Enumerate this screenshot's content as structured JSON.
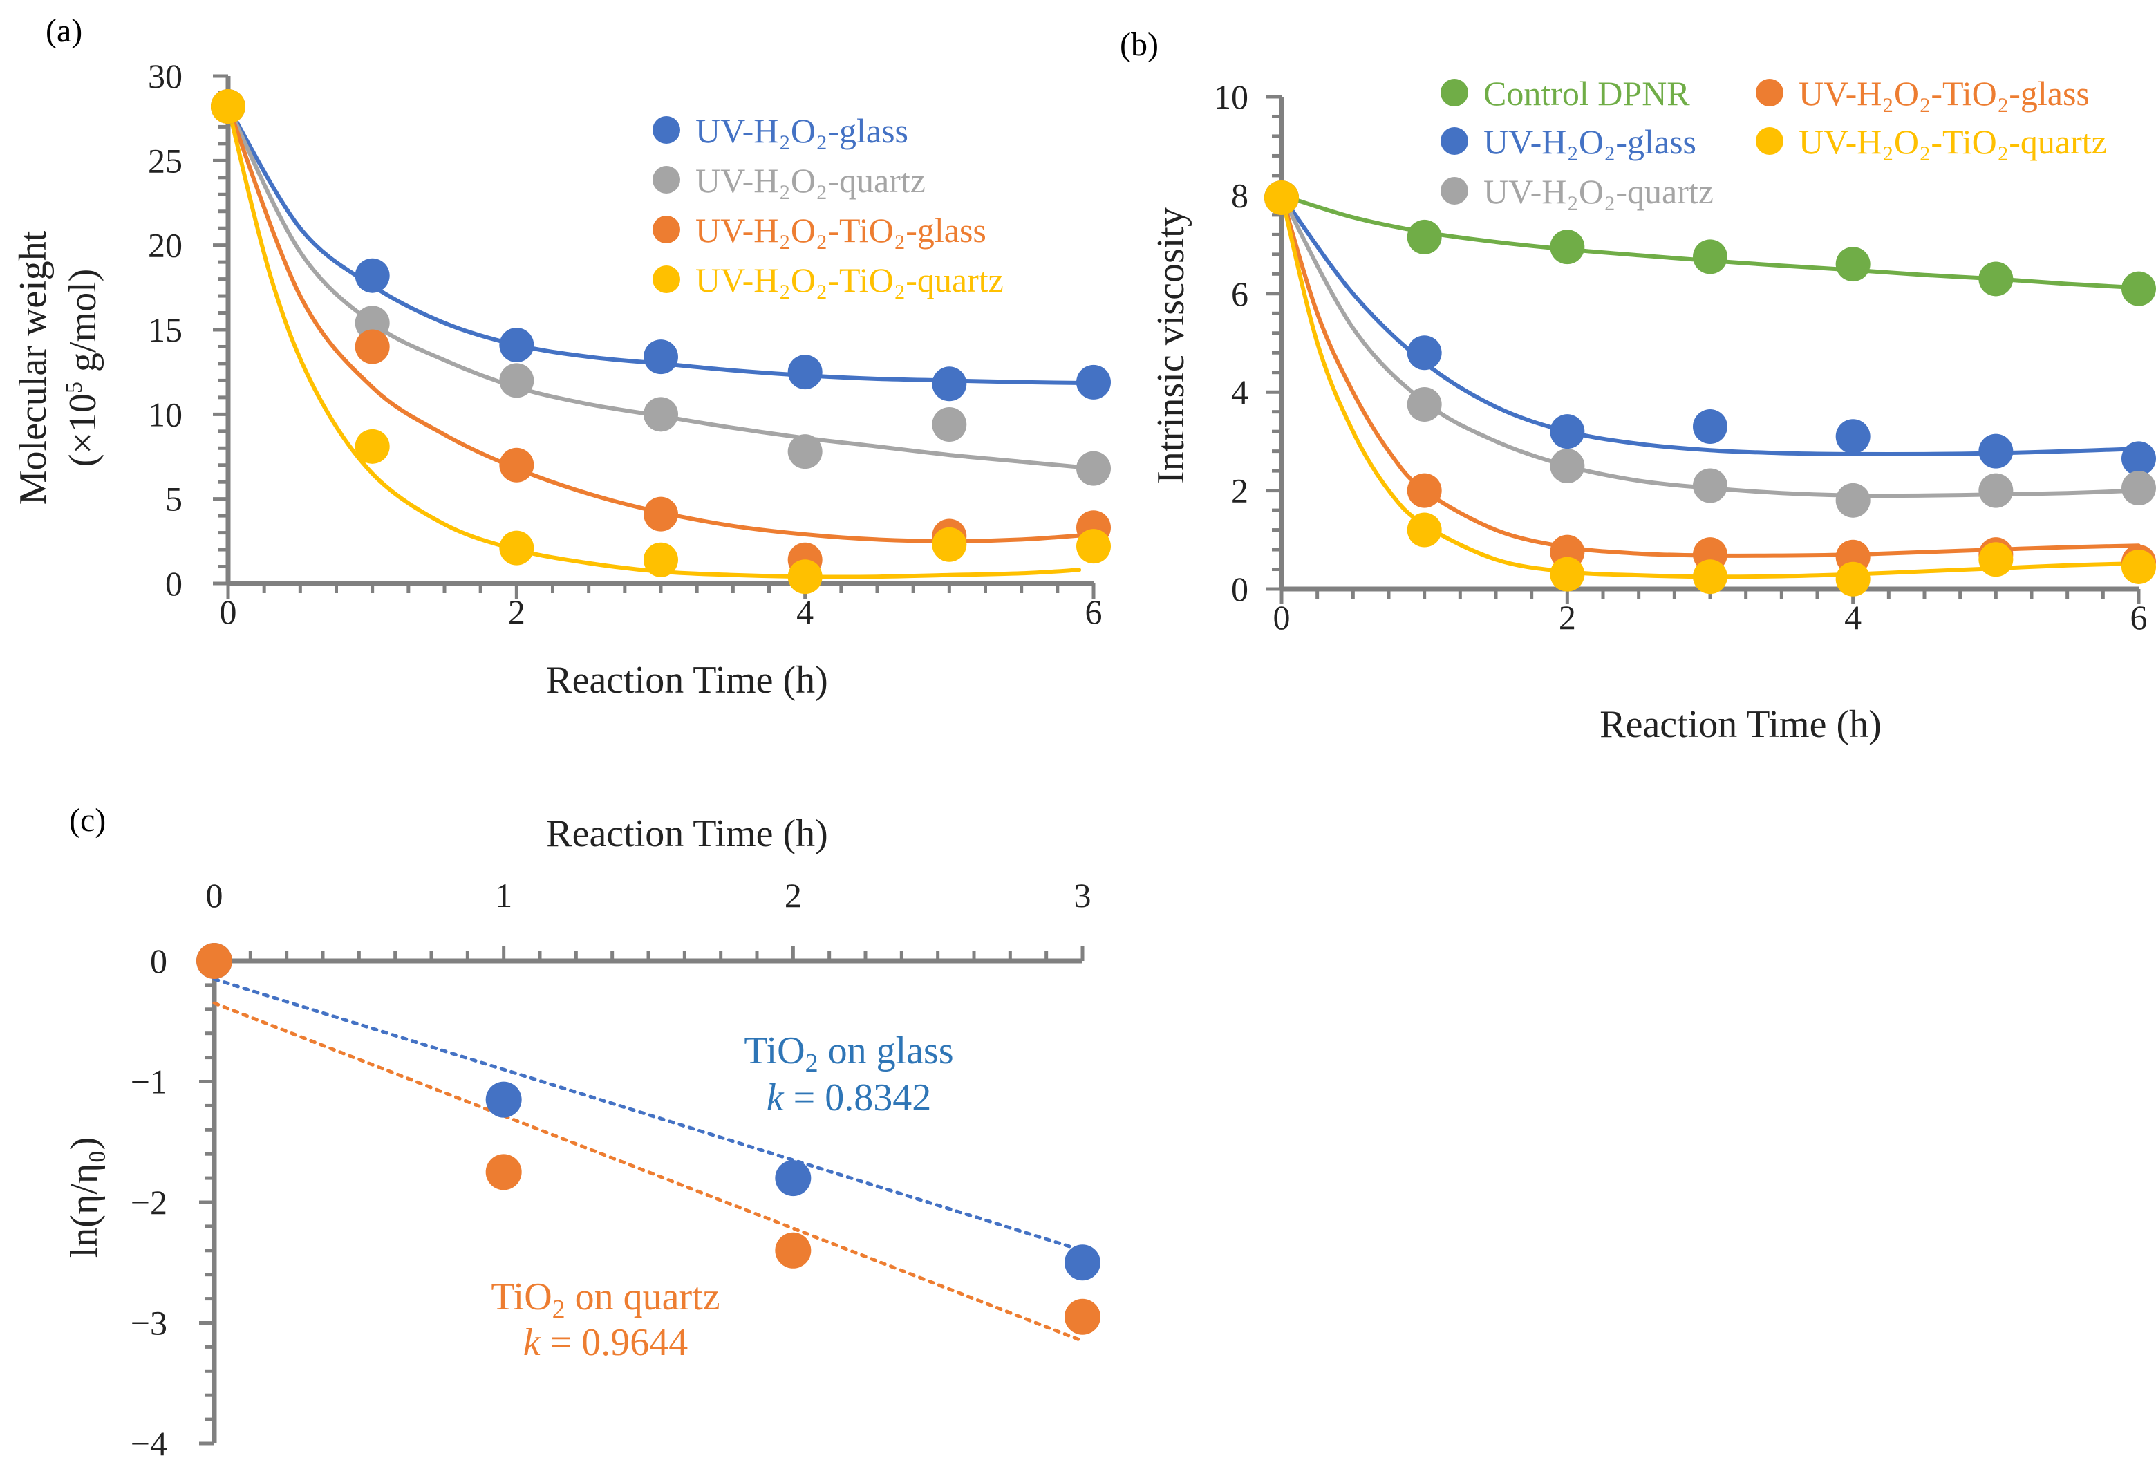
{
  "panels": {
    "a": "(a)",
    "b": "(b)",
    "c": "(c)"
  },
  "colors": {
    "control": "#70AD47",
    "glass": "#4472C4",
    "quartz": "#A5A5A5",
    "tio2_glass": "#ED7D31",
    "tio2_quartz": "#FFC000",
    "axis": "#808080",
    "c_glass_text": "#2E75B6",
    "c_quartz_text": "#ED7D31"
  },
  "legend_names": {
    "control": "Control DPNR",
    "glass": "UV-H₂O₂-glass",
    "quartz": "UV-H₂O₂-quartz",
    "tio2_glass": "UV-H₂O₂-TiO₂-glass",
    "tio2_quartz": "UV-H₂O₂-TiO₂-quartz"
  },
  "chart_data": [
    {
      "id": "a",
      "type": "scatter",
      "title": "",
      "xlabel": "Reaction Time  (h)",
      "ylabel_line1": "Molecular weight",
      "ylabel_line2_prefix": "(×10",
      "ylabel_line2_sup": "5",
      "ylabel_line2_suffix": " g/mol)",
      "xlim": [
        0,
        6
      ],
      "ylim": [
        0,
        30
      ],
      "xticks": [
        0,
        2,
        4,
        6
      ],
      "xtick_labels": [
        "0",
        "2",
        "4",
        "6"
      ],
      "yticks": [
        0,
        5,
        10,
        15,
        20,
        25,
        30
      ],
      "ytick_labels": [
        "0",
        "5",
        "10",
        "15",
        "20",
        "25",
        "30"
      ],
      "legend_position": "top-right",
      "series": [
        {
          "key": "glass",
          "name": "UV-H₂O₂-glass",
          "x": [
            0,
            1,
            2,
            3,
            4,
            5,
            6
          ],
          "y": [
            28.2,
            18.2,
            14.1,
            13.4,
            12.5,
            11.8,
            11.9
          ]
        },
        {
          "key": "quartz",
          "name": "UV-H₂O₂-quartz",
          "x": [
            0,
            1,
            2,
            3,
            4,
            5,
            6
          ],
          "y": [
            28.2,
            15.4,
            12.0,
            10.0,
            7.8,
            9.4,
            6.8
          ]
        },
        {
          "key": "tio2_glass",
          "name": "UV-H₂O₂-TiO₂-glass",
          "x": [
            0,
            1,
            2,
            3,
            4,
            5,
            6
          ],
          "y": [
            28.2,
            14.0,
            7.0,
            4.1,
            1.4,
            2.8,
            3.3
          ]
        },
        {
          "key": "tio2_quartz",
          "name": "UV-H₂O₂-TiO₂-quartz",
          "x": [
            0,
            1,
            2,
            3,
            4,
            5,
            6
          ],
          "y": [
            28.2,
            8.1,
            2.1,
            1.4,
            0.4,
            2.3,
            2.2
          ]
        }
      ],
      "fits": [
        {
          "key": "glass",
          "x": [
            0,
            0.5,
            1,
            1.5,
            2,
            2.5,
            3,
            3.5,
            4,
            4.5,
            5,
            5.5,
            6
          ],
          "y": [
            28.2,
            21.0,
            17.6,
            15.4,
            14.1,
            13.4,
            13.0,
            12.6,
            12.3,
            12.1,
            12.0,
            11.9,
            11.85
          ]
        },
        {
          "key": "quartz",
          "x": [
            0,
            0.5,
            1,
            1.5,
            2,
            2.5,
            3,
            3.5,
            4,
            4.5,
            5,
            5.5,
            6
          ],
          "y": [
            28.2,
            19.6,
            15.4,
            13.2,
            11.6,
            10.6,
            9.9,
            9.2,
            8.6,
            8.1,
            7.6,
            7.2,
            6.8
          ]
        },
        {
          "key": "tio2_glass",
          "x": [
            0,
            0.5,
            1,
            1.5,
            2,
            2.5,
            3,
            3.5,
            4,
            4.5,
            5,
            5.5,
            6
          ],
          "y": [
            28.2,
            17.0,
            11.6,
            8.8,
            6.8,
            5.3,
            4.2,
            3.4,
            2.9,
            2.6,
            2.5,
            2.6,
            2.9
          ]
        },
        {
          "key": "tio2_quartz",
          "x": [
            0,
            0.3,
            0.6,
            1,
            1.5,
            2,
            2.5,
            3,
            3.5,
            4,
            4.5,
            5,
            5.5,
            5.9
          ],
          "y": [
            28.2,
            18.0,
            11.5,
            6.5,
            3.5,
            2.0,
            1.2,
            0.7,
            0.5,
            0.4,
            0.4,
            0.5,
            0.6,
            0.8
          ]
        }
      ]
    },
    {
      "id": "b",
      "type": "scatter",
      "title": "",
      "xlabel": "Reaction Time  (h)",
      "ylabel": "Intrinsic viscosity",
      "xlim": [
        0,
        6
      ],
      "ylim": [
        0,
        10
      ],
      "xticks": [
        0,
        2,
        4,
        6
      ],
      "xtick_labels": [
        "0",
        "2",
        "4",
        "6"
      ],
      "yticks": [
        0,
        2,
        4,
        6,
        8,
        10
      ],
      "ytick_labels": [
        "0",
        "2",
        "4",
        "6",
        "8",
        "10"
      ],
      "legend_position": "top",
      "series": [
        {
          "key": "control",
          "name": "Control DPNR",
          "x": [
            0,
            1,
            2,
            3,
            4,
            5,
            6
          ],
          "y": [
            7.95,
            7.15,
            6.95,
            6.75,
            6.6,
            6.3,
            6.1
          ]
        },
        {
          "key": "glass",
          "name": "UV-H₂O₂-glass",
          "x": [
            0,
            1,
            2,
            3,
            4,
            5,
            6
          ],
          "y": [
            7.95,
            4.8,
            3.2,
            3.3,
            3.1,
            2.8,
            2.65
          ]
        },
        {
          "key": "quartz",
          "name": "UV-H₂O₂-quartz",
          "x": [
            0,
            1,
            2,
            3,
            4,
            5,
            6
          ],
          "y": [
            7.95,
            3.75,
            2.5,
            2.1,
            1.8,
            2.0,
            2.05
          ]
        },
        {
          "key": "tio2_glass",
          "name": "UV-H₂O₂-TiO₂-glass",
          "x": [
            0,
            1,
            2,
            3,
            4,
            5,
            6
          ],
          "y": [
            7.95,
            2.0,
            0.75,
            0.7,
            0.65,
            0.7,
            0.55
          ]
        },
        {
          "key": "tio2_quartz",
          "name": "UV-H₂O₂-TiO₂-quartz",
          "x": [
            0,
            1,
            2,
            3,
            4,
            5,
            6
          ],
          "y": [
            7.95,
            1.2,
            0.3,
            0.25,
            0.2,
            0.6,
            0.45
          ]
        }
      ],
      "fits": [
        {
          "key": "control",
          "x": [
            0,
            0.5,
            1,
            1.5,
            2,
            2.5,
            3,
            3.5,
            4,
            4.5,
            5,
            5.5,
            6
          ],
          "y": [
            8.0,
            7.55,
            7.25,
            7.05,
            6.9,
            6.78,
            6.67,
            6.57,
            6.48,
            6.38,
            6.3,
            6.2,
            6.12
          ]
        },
        {
          "key": "glass",
          "x": [
            0,
            0.5,
            1,
            1.5,
            2,
            2.5,
            3,
            3.5,
            4,
            4.5,
            5,
            5.5,
            6
          ],
          "y": [
            8.0,
            6.0,
            4.6,
            3.7,
            3.2,
            2.95,
            2.82,
            2.76,
            2.74,
            2.74,
            2.76,
            2.8,
            2.85
          ]
        },
        {
          "key": "quartz",
          "x": [
            0,
            0.5,
            1,
            1.5,
            2,
            2.5,
            3,
            3.5,
            4,
            4.5,
            5,
            5.5,
            6
          ],
          "y": [
            8.0,
            5.3,
            3.8,
            3.0,
            2.5,
            2.2,
            2.05,
            1.95,
            1.9,
            1.9,
            1.92,
            1.95,
            2.0
          ]
        },
        {
          "key": "tio2_glass",
          "x": [
            0,
            0.25,
            0.5,
            0.75,
            1,
            1.5,
            2,
            2.5,
            3,
            3.5,
            4,
            4.5,
            5,
            5.5,
            6
          ],
          "y": [
            8.0,
            5.6,
            4.0,
            2.8,
            2.0,
            1.2,
            0.85,
            0.72,
            0.68,
            0.68,
            0.7,
            0.75,
            0.8,
            0.85,
            0.88
          ]
        },
        {
          "key": "tio2_quartz",
          "x": [
            0,
            0.25,
            0.5,
            0.75,
            1,
            1.5,
            2,
            2.5,
            3,
            3.5,
            4,
            4.5,
            5,
            5.5,
            6
          ],
          "y": [
            8.0,
            5.0,
            3.2,
            2.0,
            1.3,
            0.6,
            0.35,
            0.28,
            0.25,
            0.26,
            0.3,
            0.36,
            0.42,
            0.48,
            0.52
          ]
        }
      ]
    },
    {
      "id": "c",
      "type": "scatter",
      "title": "",
      "xlabel": "Reaction Time  (h)",
      "ylabel": "ln(η/η₀)",
      "xlim": [
        0,
        3
      ],
      "ylim": [
        -4,
        0
      ],
      "xticks": [
        0,
        1,
        2,
        3
      ],
      "xtick_labels": [
        "0",
        "1",
        "2",
        "3"
      ],
      "yticks": [
        0,
        -1,
        -2,
        -3,
        -4
      ],
      "ytick_labels": [
        "0",
        "−1",
        "−2",
        "−3",
        "−4"
      ],
      "series": [
        {
          "key": "glass",
          "name": "TiO₂ on glass",
          "x": [
            0,
            1,
            2,
            3
          ],
          "y": [
            0,
            -1.15,
            -1.8,
            -2.5
          ]
        },
        {
          "key": "quartz",
          "name": "TiO₂ on quartz",
          "x": [
            0,
            1,
            2,
            3
          ],
          "y": [
            0,
            -1.75,
            -2.4,
            -2.95
          ]
        }
      ],
      "trendlines": [
        {
          "key": "glass",
          "x": [
            0,
            3
          ],
          "y": [
            -0.15,
            -2.4
          ]
        },
        {
          "key": "quartz",
          "x": [
            0,
            3
          ],
          "y": [
            -0.35,
            -3.15
          ]
        }
      ],
      "annotations": {
        "glass_name_prefix": "TiO",
        "glass_name_sub": "2",
        "glass_name_suffix": " on glass",
        "glass_k_label": "k",
        "glass_k_value": " = 0.8342",
        "quartz_name_prefix": "TiO",
        "quartz_name_sub": "2",
        "quartz_name_suffix": " on quartz",
        "quartz_k_label": "k",
        "quartz_k_value": " = 0.9644"
      }
    }
  ]
}
